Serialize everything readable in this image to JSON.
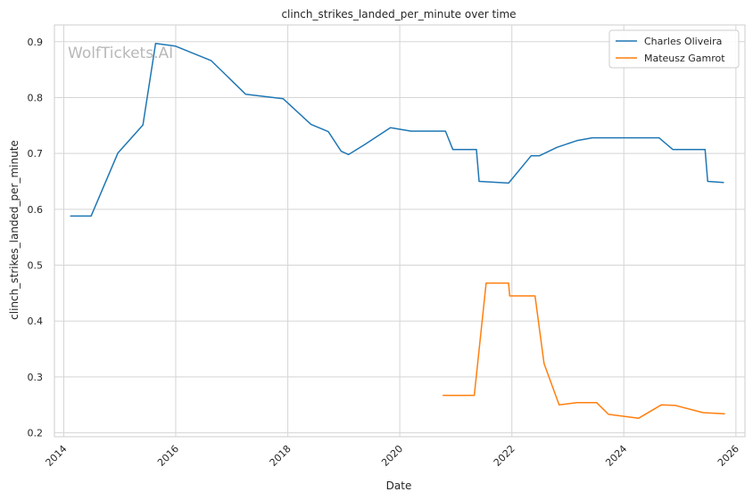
{
  "chart_data": {
    "type": "line",
    "title": "clinch_strikes_landed_per_minute over time",
    "xlabel": "Date",
    "ylabel": "clinch_strikes_landed_per_minute",
    "xlim": [
      "2013-11-01",
      "2026-03-01"
    ],
    "ylim": [
      0.193,
      0.93
    ],
    "x_ticks": [
      "2014",
      "2016",
      "2018",
      "2020",
      "2022",
      "2024",
      "2026"
    ],
    "y_ticks": [
      0.2,
      0.3,
      0.4,
      0.5,
      0.6,
      0.7,
      0.8,
      0.9
    ],
    "y_tick_labels": [
      "0.2",
      "0.3",
      "0.4",
      "0.5",
      "0.6",
      "0.7",
      "0.8",
      "0.9"
    ],
    "grid": true,
    "legend_position": "top-right",
    "watermark": "WolfTickets.AI",
    "series": [
      {
        "name": "Charles Oliveira",
        "color": "#1f77b4",
        "points": [
          [
            "2014-02-15",
            0.588
          ],
          [
            "2014-06-28",
            0.588
          ],
          [
            "2014-12-20",
            0.701
          ],
          [
            "2015-06-01",
            0.751
          ],
          [
            "2015-08-23",
            0.897
          ],
          [
            "2015-12-31",
            0.892
          ],
          [
            "2016-08-20",
            0.866
          ],
          [
            "2017-04-01",
            0.806
          ],
          [
            "2017-12-01",
            0.798
          ],
          [
            "2018-06-01",
            0.752
          ],
          [
            "2018-09-22",
            0.739
          ],
          [
            "2018-12-15",
            0.704
          ],
          [
            "2019-02-01",
            0.698
          ],
          [
            "2019-05-18",
            0.716
          ],
          [
            "2019-11-01",
            0.746
          ],
          [
            "2020-03-14",
            0.74
          ],
          [
            "2020-10-25",
            0.74
          ],
          [
            "2020-12-12",
            0.707
          ],
          [
            "2021-05-15",
            0.707
          ],
          [
            "2021-06-01",
            0.65
          ],
          [
            "2021-12-11",
            0.647
          ],
          [
            "2022-05-07",
            0.696
          ],
          [
            "2022-07-01",
            0.696
          ],
          [
            "2022-10-22",
            0.711
          ],
          [
            "2023-03-01",
            0.723
          ],
          [
            "2023-06-10",
            0.728
          ],
          [
            "2024-04-13",
            0.728
          ],
          [
            "2024-08-17",
            0.728
          ],
          [
            "2024-11-16",
            0.707
          ],
          [
            "2025-06-14",
            0.707
          ],
          [
            "2025-07-01",
            0.65
          ],
          [
            "2025-10-11",
            0.648
          ]
        ]
      },
      {
        "name": "Mateusz Gamrot",
        "color": "#ff7f0e",
        "points": [
          [
            "2020-10-10",
            0.267
          ],
          [
            "2021-05-01",
            0.267
          ],
          [
            "2021-07-17",
            0.468
          ],
          [
            "2021-12-10",
            0.468
          ],
          [
            "2021-12-18",
            0.445
          ],
          [
            "2022-06-01",
            0.445
          ],
          [
            "2022-07-30",
            0.324
          ],
          [
            "2022-11-05",
            0.25
          ],
          [
            "2023-03-01",
            0.254
          ],
          [
            "2023-07-08",
            0.254
          ],
          [
            "2023-09-23",
            0.233
          ],
          [
            "2024-04-06",
            0.226
          ],
          [
            "2024-09-01",
            0.25
          ],
          [
            "2024-12-01",
            0.249
          ],
          [
            "2025-06-01",
            0.236
          ],
          [
            "2025-10-18",
            0.234
          ]
        ]
      }
    ]
  }
}
